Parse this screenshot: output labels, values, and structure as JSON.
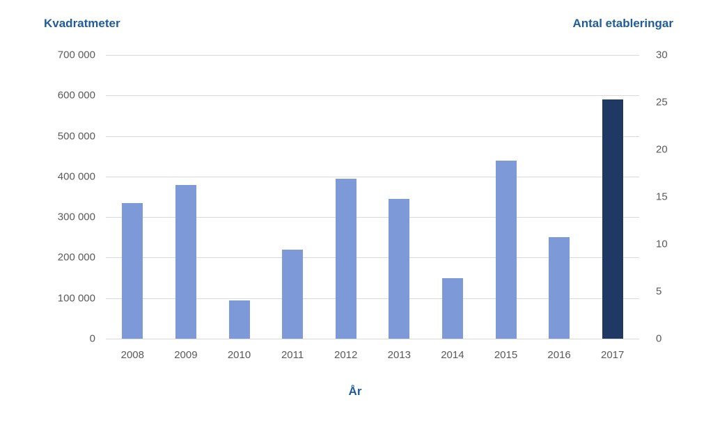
{
  "chart_data": {
    "type": "bar",
    "xlabel": "År",
    "categories": [
      "2008",
      "2009",
      "2010",
      "2011",
      "2012",
      "2013",
      "2014",
      "2015",
      "2016",
      "2017"
    ],
    "series": [
      {
        "name": "Kvadratmeter",
        "axis": "left",
        "values": [
          335000,
          380000,
          95000,
          220000,
          395000,
          345000,
          150000,
          440000,
          250000,
          590000
        ]
      }
    ],
    "left_axis": {
      "title": "Kvadratmeter",
      "range": [
        0,
        700000
      ],
      "tick_step": 100000,
      "ticks": [
        {
          "value": 0,
          "label": "0"
        },
        {
          "value": 100000,
          "label": "100 000"
        },
        {
          "value": 200000,
          "label": "200 000"
        },
        {
          "value": 300000,
          "label": "300 000"
        },
        {
          "value": 400000,
          "label": "400 000"
        },
        {
          "value": 500000,
          "label": "500 000"
        },
        {
          "value": 600000,
          "label": "600 000"
        },
        {
          "value": 700000,
          "label": "700 000"
        }
      ]
    },
    "right_axis": {
      "title": "Antal etableringar",
      "range": [
        0,
        30
      ],
      "tick_step": 5,
      "ticks": [
        {
          "value": 0,
          "label": "0"
        },
        {
          "value": 5,
          "label": "5"
        },
        {
          "value": 10,
          "label": "10"
        },
        {
          "value": 15,
          "label": "15"
        },
        {
          "value": 20,
          "label": "20"
        },
        {
          "value": 25,
          "label": "25"
        },
        {
          "value": 30,
          "label": "30"
        }
      ]
    },
    "grid": true,
    "legend": false,
    "highlight": {
      "category": "2017",
      "right_axis_value": 25
    },
    "colors": {
      "bar": "#7e99d8",
      "bar_highlight": "#1f3864",
      "grid": "#d9d9d9",
      "tick_text": "#595959",
      "axis_title_text": "#1f5c99"
    }
  }
}
